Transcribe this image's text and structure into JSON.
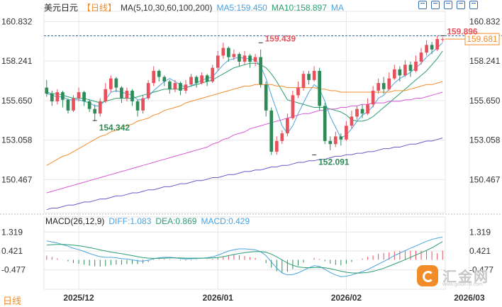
{
  "header": {
    "symbol": "美元日元",
    "timeframe": "【日线】",
    "ma_label": "MA(5,10,30,60,100,200)",
    "ma5": "MA5:159.450",
    "ma10": "MA10:158.897",
    "ma20": "MA"
  },
  "macd_header": {
    "title": "MACD(26,12,9)",
    "diff": "DIFF:1.083",
    "dea": "DEA:0.869",
    "macd": "MACD:0.429"
  },
  "footer": {
    "timeframe": "日线"
  },
  "watermark": {
    "text": "汇金网",
    "url": "www.gold678.com"
  },
  "colors": {
    "up": "#e8505b",
    "down": "#2e8b57",
    "ma5": "#4aa3df",
    "ma10": "#2a9d70",
    "ma30": "#f28c28",
    "ma60": "#d65ad6",
    "ma100": "#6a5acd",
    "grid": "#e6e6e6",
    "price_box": "#f28c28"
  },
  "chart_data": {
    "type": "candlestick",
    "y_ticks": [
      "160.832",
      "158.241",
      "155.650",
      "153.058",
      "150.467"
    ],
    "y_tick_values": [
      160.832,
      158.241,
      155.65,
      153.058,
      150.467
    ],
    "ylim": [
      148.3,
      161.5
    ],
    "x_labels": [
      "2025/12",
      "2026/01",
      "2026/02",
      "2026/03"
    ],
    "x_label_indices": [
      6,
      32,
      56,
      79
    ],
    "last_price": "159.681",
    "last_price_value": 159.681,
    "high_marker": 159.896,
    "annotations": [
      {
        "text": "159.439",
        "index": 40,
        "value": 159.439
      },
      {
        "text": "154.342",
        "index": 9,
        "value": 154.342
      },
      {
        "text": "152.091",
        "index": 50,
        "value": 152.091
      },
      {
        "text": "159.896",
        "index": 92,
        "value": 159.896
      }
    ],
    "candles": [
      [
        156.5,
        156.1,
        157.0,
        155.9
      ],
      [
        156.1,
        155.6,
        156.3,
        155.3
      ],
      [
        155.6,
        156.2,
        156.4,
        155.4
      ],
      [
        156.2,
        155.7,
        156.3,
        155.2
      ],
      [
        155.7,
        155.0,
        155.8,
        154.8
      ],
      [
        155.0,
        155.8,
        156.0,
        154.9
      ],
      [
        155.8,
        156.2,
        156.5,
        155.6
      ],
      [
        156.2,
        155.6,
        156.3,
        155.3
      ],
      [
        155.6,
        155.1,
        155.7,
        154.9
      ],
      [
        155.1,
        154.8,
        155.4,
        154.3
      ],
      [
        154.8,
        155.6,
        155.8,
        154.6
      ],
      [
        155.6,
        156.4,
        156.8,
        155.5
      ],
      [
        156.4,
        157.1,
        157.3,
        156.2
      ],
      [
        157.1,
        156.5,
        157.2,
        156.2
      ],
      [
        156.5,
        155.8,
        156.6,
        155.5
      ],
      [
        155.8,
        156.3,
        156.5,
        155.6
      ],
      [
        156.3,
        155.6,
        156.4,
        155.3
      ],
      [
        155.6,
        155.0,
        155.7,
        154.6
      ],
      [
        155.0,
        155.8,
        156.0,
        154.8
      ],
      [
        155.8,
        156.8,
        157.0,
        155.7
      ],
      [
        156.8,
        157.6,
        157.9,
        156.6
      ],
      [
        157.6,
        157.2,
        157.7,
        156.9
      ],
      [
        157.2,
        156.9,
        157.3,
        156.6
      ],
      [
        156.9,
        156.4,
        157.0,
        156.1
      ],
      [
        156.4,
        156.8,
        157.0,
        156.2
      ],
      [
        156.8,
        156.3,
        156.9,
        156.0
      ],
      [
        156.3,
        156.7,
        157.0,
        156.1
      ],
      [
        156.7,
        157.2,
        157.4,
        156.6
      ],
      [
        157.2,
        156.8,
        157.3,
        156.5
      ],
      [
        156.8,
        157.3,
        157.5,
        156.7
      ],
      [
        157.3,
        156.9,
        157.4,
        156.6
      ],
      [
        156.9,
        157.8,
        158.0,
        156.8
      ],
      [
        157.8,
        158.6,
        158.9,
        157.6
      ],
      [
        158.6,
        159.1,
        159.44,
        158.4
      ],
      [
        159.1,
        158.5,
        159.2,
        158.2
      ],
      [
        158.5,
        158.7,
        159.0,
        158.3
      ],
      [
        158.7,
        158.2,
        158.8,
        157.9
      ],
      [
        158.2,
        158.6,
        158.9,
        158.0
      ],
      [
        158.6,
        158.2,
        158.7,
        157.8
      ],
      [
        158.2,
        158.5,
        158.7,
        157.9
      ],
      [
        158.5,
        156.7,
        159.0,
        156.5
      ],
      [
        156.7,
        155.0,
        156.9,
        154.6
      ],
      [
        155.0,
        152.3,
        155.2,
        152.09
      ],
      [
        152.3,
        153.0,
        153.3,
        152.1
      ],
      [
        153.0,
        153.5,
        153.7,
        152.8
      ],
      [
        153.5,
        154.5,
        154.8,
        153.3
      ],
      [
        154.5,
        156.0,
        156.3,
        154.4
      ],
      [
        156.0,
        156.5,
        156.9,
        155.8
      ],
      [
        156.5,
        157.4,
        157.6,
        156.3
      ],
      [
        157.4,
        157.0,
        157.6,
        156.7
      ],
      [
        157.0,
        157.6,
        157.9,
        156.9
      ],
      [
        157.6,
        155.3,
        157.8,
        155.0
      ],
      [
        155.3,
        153.0,
        155.5,
        152.8
      ],
      [
        153.0,
        152.8,
        153.3,
        152.4
      ],
      [
        152.8,
        153.3,
        153.6,
        152.6
      ],
      [
        153.3,
        153.1,
        153.5,
        152.7
      ],
      [
        153.1,
        154.0,
        154.3,
        153.0
      ],
      [
        154.0,
        154.6,
        155.0,
        153.8
      ],
      [
        154.6,
        155.1,
        155.3,
        154.4
      ],
      [
        155.1,
        154.8,
        155.4,
        154.5
      ],
      [
        154.8,
        155.4,
        155.8,
        154.7
      ],
      [
        155.4,
        156.3,
        156.6,
        155.2
      ],
      [
        156.3,
        156.8,
        157.1,
        156.1
      ],
      [
        156.8,
        156.4,
        157.2,
        156.1
      ],
      [
        156.4,
        157.1,
        157.5,
        156.3
      ],
      [
        157.1,
        157.7,
        158.0,
        157.0
      ],
      [
        157.7,
        157.3,
        157.9,
        156.9
      ],
      [
        157.3,
        158.0,
        158.3,
        157.2
      ],
      [
        158.0,
        157.6,
        158.2,
        157.2
      ],
      [
        157.6,
        158.2,
        158.6,
        157.5
      ],
      [
        158.2,
        158.8,
        159.1,
        158.0
      ],
      [
        158.8,
        159.3,
        159.6,
        158.6
      ],
      [
        159.3,
        159.0,
        159.5,
        158.7
      ],
      [
        159.0,
        159.68,
        159.9,
        158.9
      ],
      [
        159.68,
        159.68,
        159.8,
        159.5
      ]
    ],
    "series": [
      {
        "name": "MA5",
        "color": "#4aa3df",
        "values": [
          156.1,
          156.0,
          155.9,
          155.9,
          155.7,
          155.7,
          155.7,
          155.6,
          155.5,
          155.3,
          155.3,
          155.7,
          156.2,
          156.3,
          156.2,
          156.1,
          156.0,
          155.7,
          155.7,
          155.9,
          156.3,
          156.6,
          156.9,
          157.1,
          156.9,
          156.7,
          156.5,
          156.6,
          156.8,
          157.0,
          157.1,
          157.2,
          157.6,
          158.0,
          158.3,
          158.4,
          158.5,
          158.4,
          158.4,
          158.3,
          157.9,
          157.1,
          156.0,
          155.0,
          154.0,
          153.5,
          154.0,
          154.8,
          155.5,
          156.2,
          156.7,
          156.4,
          155.6,
          154.6,
          153.9,
          153.2,
          153.4,
          153.8,
          154.3,
          154.7,
          154.9,
          155.3,
          155.8,
          156.0,
          156.4,
          156.8,
          157.1,
          157.3,
          157.5,
          157.8,
          158.1,
          158.5,
          158.8,
          159.1,
          159.45
        ]
      },
      {
        "name": "MA10",
        "color": "#2a9d70",
        "values": [
          156.2,
          156.1,
          156.1,
          156.0,
          155.9,
          155.8,
          155.8,
          155.8,
          155.7,
          155.6,
          155.5,
          155.6,
          155.7,
          155.8,
          155.8,
          155.8,
          155.8,
          155.9,
          156.0,
          156.1,
          156.2,
          156.3,
          156.4,
          156.4,
          156.4,
          156.4,
          156.5,
          156.6,
          156.7,
          156.8,
          156.9,
          157.0,
          157.2,
          157.4,
          157.6,
          157.8,
          157.9,
          158.0,
          158.1,
          158.1,
          158.0,
          157.8,
          157.4,
          156.9,
          156.3,
          155.7,
          155.6,
          155.5,
          155.4,
          155.3,
          155.2,
          155.2,
          155.2,
          155.1,
          155.0,
          154.9,
          154.7,
          154.4,
          154.3,
          154.3,
          154.4,
          154.6,
          154.9,
          155.2,
          155.5,
          155.8,
          156.1,
          156.4,
          156.7,
          157.0,
          157.3,
          157.6,
          158.0,
          158.4,
          158.9
        ]
      },
      {
        "name": "MA30",
        "color": "#f28c28",
        "values": [
          151.4,
          151.6,
          151.8,
          152.0,
          152.1,
          152.3,
          152.5,
          152.7,
          152.9,
          153.1,
          153.3,
          153.4,
          153.6,
          153.7,
          153.9,
          154.0,
          154.1,
          154.3,
          154.4,
          154.5,
          154.7,
          154.8,
          155.0,
          155.1,
          155.2,
          155.3,
          155.5,
          155.6,
          155.7,
          155.8,
          155.9,
          156.0,
          156.1,
          156.2,
          156.3,
          156.4,
          156.5,
          156.6,
          156.6,
          156.7,
          156.7,
          156.7,
          156.7,
          156.6,
          156.6,
          156.5,
          156.5,
          156.5,
          156.5,
          156.5,
          156.5,
          156.4,
          156.4,
          156.3,
          156.3,
          156.2,
          156.2,
          156.2,
          156.2,
          156.2,
          156.2,
          156.2,
          156.2,
          156.2,
          156.2,
          156.3,
          156.3,
          156.3,
          156.4,
          156.5,
          156.6,
          156.7,
          156.7,
          156.8,
          156.9
        ]
      },
      {
        "name": "MA60",
        "color": "#d65ad6",
        "values": [
          149.6,
          149.7,
          149.8,
          149.9,
          150.0,
          150.1,
          150.2,
          150.3,
          150.4,
          150.5,
          150.6,
          150.7,
          150.8,
          150.9,
          151.0,
          151.1,
          151.2,
          151.3,
          151.4,
          151.5,
          151.6,
          151.7,
          151.8,
          151.9,
          152.0,
          152.1,
          152.2,
          152.3,
          152.4,
          152.5,
          152.6,
          152.8,
          152.9,
          153.1,
          153.2,
          153.4,
          153.5,
          153.6,
          153.8,
          153.9,
          154.0,
          154.1,
          154.2,
          154.3,
          154.4,
          154.5,
          154.6,
          154.7,
          154.8,
          154.8,
          154.9,
          155.0,
          155.0,
          155.1,
          155.1,
          155.2,
          155.2,
          155.3,
          155.3,
          155.4,
          155.4,
          155.5,
          155.5,
          155.5,
          155.6,
          155.6,
          155.6,
          155.7,
          155.7,
          155.8,
          155.8,
          155.9,
          156.0,
          156.1,
          156.2
        ]
      },
      {
        "name": "MA100",
        "color": "#6a5acd",
        "values": [
          148.5,
          148.6,
          148.6,
          148.7,
          148.8,
          148.8,
          148.9,
          149.0,
          149.0,
          149.1,
          149.2,
          149.2,
          149.3,
          149.4,
          149.4,
          149.5,
          149.6,
          149.6,
          149.7,
          149.8,
          149.8,
          149.9,
          150.0,
          150.0,
          150.1,
          150.2,
          150.2,
          150.3,
          150.4,
          150.4,
          150.5,
          150.6,
          150.6,
          150.7,
          150.8,
          150.8,
          150.9,
          151.0,
          151.0,
          151.1,
          151.1,
          151.2,
          151.3,
          151.3,
          151.4,
          151.4,
          151.5,
          151.6,
          151.6,
          151.7,
          151.7,
          151.8,
          151.8,
          151.9,
          152.0,
          152.0,
          152.1,
          152.1,
          152.2,
          152.2,
          152.3,
          152.3,
          152.4,
          152.5,
          152.5,
          152.6,
          152.6,
          152.7,
          152.8,
          152.8,
          152.9,
          153.0,
          153.0,
          153.1,
          153.2
        ]
      }
    ],
    "macd": {
      "y_ticks": [
        "1.319",
        "0.421",
        "-0.477"
      ],
      "y_tick_values": [
        1.319,
        0.421,
        -0.477
      ],
      "ylim": [
        -1.4,
        1.7
      ],
      "diff": [
        0.9,
        0.85,
        0.8,
        0.72,
        0.65,
        0.55,
        0.48,
        0.4,
        0.3,
        0.22,
        0.15,
        0.12,
        0.12,
        0.1,
        0.06,
        0.04,
        0.0,
        -0.05,
        -0.06,
        -0.02,
        0.05,
        0.1,
        0.12,
        0.12,
        0.1,
        0.06,
        0.04,
        0.05,
        0.06,
        0.08,
        0.1,
        0.14,
        0.22,
        0.32,
        0.42,
        0.48,
        0.52,
        0.52,
        0.5,
        0.48,
        0.38,
        0.2,
        -0.1,
        -0.4,
        -0.62,
        -0.72,
        -0.7,
        -0.62,
        -0.5,
        -0.38,
        -0.28,
        -0.32,
        -0.45,
        -0.6,
        -0.72,
        -0.8,
        -0.78,
        -0.72,
        -0.64,
        -0.56,
        -0.46,
        -0.34,
        -0.2,
        -0.08,
        0.06,
        0.2,
        0.32,
        0.44,
        0.55,
        0.66,
        0.77,
        0.88,
        0.97,
        1.03,
        1.083
      ],
      "dea": [
        0.7,
        0.72,
        0.73,
        0.73,
        0.72,
        0.7,
        0.67,
        0.63,
        0.58,
        0.53,
        0.47,
        0.42,
        0.37,
        0.33,
        0.29,
        0.24,
        0.2,
        0.15,
        0.11,
        0.08,
        0.07,
        0.07,
        0.08,
        0.09,
        0.09,
        0.09,
        0.08,
        0.08,
        0.08,
        0.08,
        0.08,
        0.09,
        0.11,
        0.15,
        0.2,
        0.25,
        0.3,
        0.34,
        0.37,
        0.39,
        0.39,
        0.36,
        0.27,
        0.14,
        0.0,
        -0.15,
        -0.26,
        -0.34,
        -0.37,
        -0.38,
        -0.37,
        -0.36,
        -0.38,
        -0.42,
        -0.48,
        -0.54,
        -0.59,
        -0.62,
        -0.63,
        -0.62,
        -0.6,
        -0.55,
        -0.48,
        -0.4,
        -0.3,
        -0.2,
        -0.1,
        0.01,
        0.12,
        0.23,
        0.34,
        0.45,
        0.57,
        0.72,
        0.869
      ],
      "hist": [
        0.2,
        0.13,
        0.07,
        -0.01,
        -0.07,
        -0.15,
        -0.19,
        -0.23,
        -0.28,
        -0.31,
        -0.32,
        -0.3,
        -0.25,
        -0.23,
        -0.23,
        -0.2,
        -0.2,
        -0.2,
        -0.17,
        -0.1,
        -0.02,
        0.03,
        0.04,
        0.03,
        0.01,
        -0.03,
        -0.04,
        -0.03,
        -0.02,
        0.0,
        0.02,
        0.05,
        0.11,
        0.17,
        0.22,
        0.23,
        0.22,
        0.18,
        0.13,
        0.09,
        -0.01,
        -0.16,
        -0.37,
        -0.54,
        -0.62,
        -0.57,
        -0.44,
        -0.28,
        -0.13,
        0.0,
        0.09,
        0.04,
        -0.07,
        -0.18,
        -0.24,
        -0.26,
        -0.19,
        -0.1,
        -0.01,
        0.06,
        0.14,
        0.21,
        0.28,
        0.32,
        0.36,
        0.4,
        0.42,
        0.43,
        0.43,
        0.43,
        0.43,
        0.43,
        0.4,
        0.31,
        0.429
      ]
    }
  }
}
